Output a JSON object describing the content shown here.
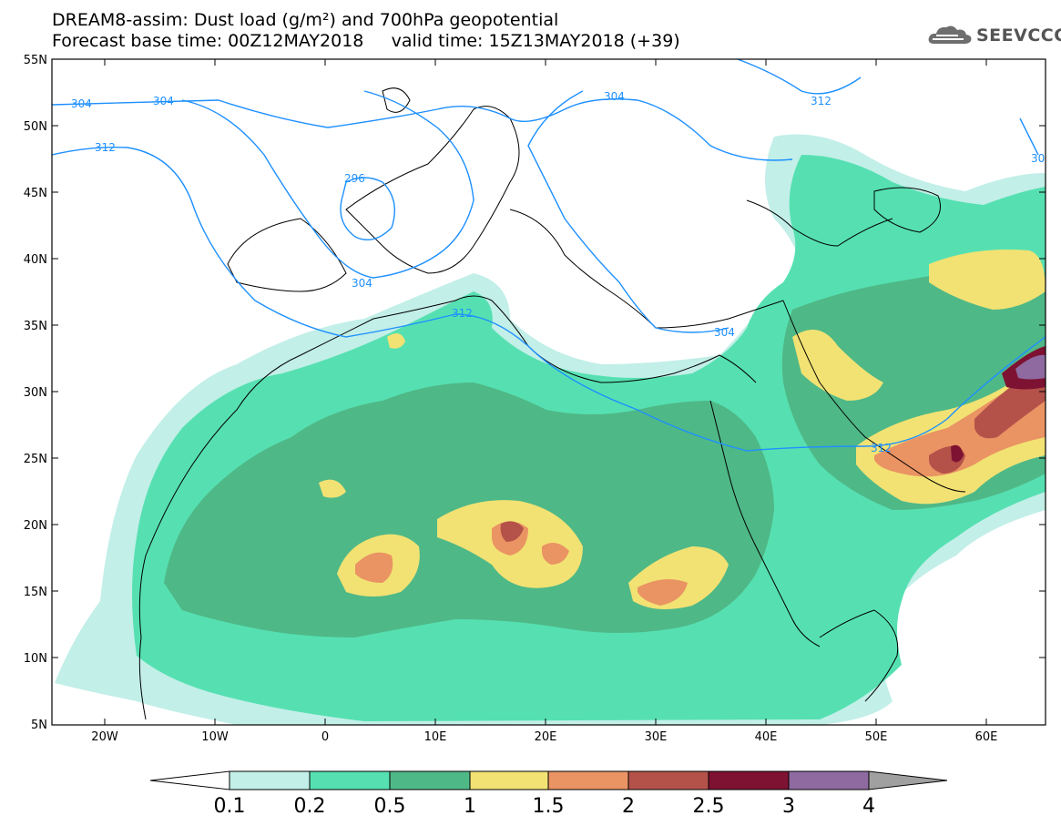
{
  "title_line1": "DREAM8-assim: Dust load (g/m²) and 700hPa geopotential",
  "title_line2": "Forecast base time: 00Z12MAY2018     valid time: 15Z13MAY2018 (+39)",
  "brand": {
    "name": "SEEVCCC",
    "icon": "cloud-icon"
  },
  "map": {
    "lat_ticks": [
      "55N",
      "50N",
      "45N",
      "40N",
      "35N",
      "30N",
      "25N",
      "20N",
      "15N",
      "10N",
      "5N"
    ],
    "lon_ticks": [
      "20W",
      "10W",
      "0",
      "10E",
      "20E",
      "30E",
      "40E",
      "50E",
      "60E"
    ],
    "contour_labels": [
      "304",
      "304",
      "312",
      "296",
      "304",
      "304",
      "312",
      "304",
      "312",
      "312",
      "30"
    ],
    "colors": {
      "contour": "#1e90ff",
      "coast": "#000000"
    }
  },
  "colorbar": {
    "labels": [
      "0.1",
      "0.2",
      "0.5",
      "1",
      "1.5",
      "2",
      "2.5",
      "3",
      "4"
    ],
    "colors": [
      "#c2efe8",
      "#56e0b1",
      "#4fb887",
      "#f2e273",
      "#ea9363",
      "#b4524a",
      "#7e1232",
      "#8e6aa0",
      "#a0a0a0"
    ]
  }
}
